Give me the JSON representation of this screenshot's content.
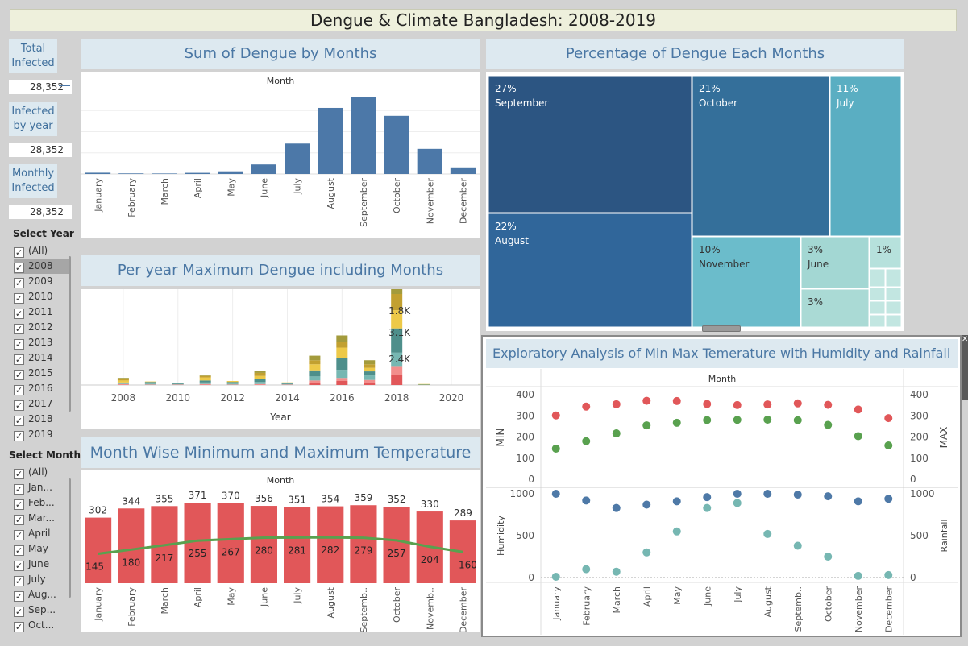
{
  "title": "Dengue & Climate Bangladesh: 2008-2019",
  "kpis": {
    "total_label": "Total Infected",
    "total_value": "28,352",
    "year_label": "Infected by year",
    "year_value": "28,352",
    "monthly_label": "Monthly Infected",
    "monthly_value": "28,352"
  },
  "year_filter": {
    "title": "Select Year",
    "items": [
      "(All)",
      "2008",
      "2009",
      "2010",
      "2011",
      "2012",
      "2013",
      "2014",
      "2015",
      "2016",
      "2017",
      "2018",
      "2019"
    ],
    "selected": "2008"
  },
  "month_filter": {
    "title": "Select Months",
    "items": [
      "(All)",
      "Jan...",
      "Feb...",
      "Mar...",
      "April",
      "May",
      "June",
      "July",
      "Aug...",
      "Sep...",
      "Oct..."
    ]
  },
  "months": [
    "January",
    "February",
    "March",
    "April",
    "May",
    "June",
    "July",
    "August",
    "September",
    "October",
    "November",
    "December"
  ],
  "colors": {
    "bar_blue": "#4c78a8",
    "temp_red": "#e15759",
    "temp_green": "#59a14f",
    "hum_blue": "#4e79a7",
    "rain_teal": "#76b7b2",
    "title_blue": "#4a77a4",
    "panel_header": "#dde9f0"
  },
  "chart_data": [
    {
      "type": "bar",
      "title": "Sum of Dengue by Months",
      "header": "Month",
      "categories": [
        "January",
        "February",
        "March",
        "April",
        "May",
        "June",
        "July",
        "August",
        "September",
        "October",
        "November",
        "December"
      ],
      "values": [
        96,
        44,
        38,
        86,
        201,
        719,
        2300,
        5000,
        5800,
        4400,
        1900,
        500
      ]
    },
    {
      "type": "treemap",
      "title": "Percentage of Dengue Each Months",
      "cells": [
        {
          "pct": "27%",
          "label": "September",
          "color": "#2c5582"
        },
        {
          "pct": "21%",
          "label": "October",
          "color": "#346f9a"
        },
        {
          "pct": "11%",
          "label": "July",
          "color": "#5aaec2"
        },
        {
          "pct": "22%",
          "label": "August",
          "color": "#30669a"
        },
        {
          "pct": "10%",
          "label": "November",
          "color": "#6bbccb"
        },
        {
          "pct": "3%",
          "label": "June",
          "color": "#a3d7d3"
        },
        {
          "pct": "1%",
          "label": "",
          "color": "#b6e1dc"
        },
        {
          "pct": "3%",
          "label": "",
          "color": "#aadad5"
        }
      ]
    },
    {
      "type": "bar",
      "stacked": true,
      "title": "Per year Maximum Dengue including Months",
      "xlabel": "Year",
      "x_ticks": [
        "2008",
        "2010",
        "2012",
        "2014",
        "2016",
        "2018",
        "2020"
      ],
      "xlim": [
        2007,
        2020.5
      ],
      "series_colors": [
        "#e15759",
        "#f28e8c",
        "#76b7b2",
        "#4e8f8b",
        "#edc948",
        "#c2a030",
        "#a39b3c"
      ],
      "data_labels": [
        "1.8K",
        "3.1K",
        "2.4K"
      ],
      "stacks": [
        {
          "year": 2008,
          "values": [
            0,
            100,
            150,
            0,
            200,
            150,
            100
          ]
        },
        {
          "year": 2009,
          "values": [
            0,
            50,
            100,
            150,
            50,
            0,
            0
          ]
        },
        {
          "year": 2010,
          "values": [
            0,
            50,
            60,
            80,
            50,
            0,
            0
          ]
        },
        {
          "year": 2011,
          "values": [
            0,
            100,
            150,
            200,
            300,
            150,
            50
          ]
        },
        {
          "year": 2012,
          "values": [
            0,
            50,
            100,
            150,
            100,
            0,
            0
          ]
        },
        {
          "year": 2013,
          "values": [
            0,
            100,
            200,
            300,
            300,
            300,
            200
          ]
        },
        {
          "year": 2014,
          "values": [
            0,
            50,
            60,
            100,
            50,
            0,
            0
          ]
        },
        {
          "year": 2015,
          "values": [
            200,
            250,
            400,
            600,
            600,
            400,
            450
          ]
        },
        {
          "year": 2016,
          "values": [
            400,
            300,
            800,
            1200,
            1000,
            600,
            600
          ]
        },
        {
          "year": 2017,
          "values": [
            200,
            300,
            450,
            400,
            350,
            350,
            400
          ]
        },
        {
          "year": 2018,
          "values": [
            1000,
            800,
            1400,
            2400,
            1800,
            1600,
            1000
          ]
        },
        {
          "year": 2019,
          "values": [
            0,
            0,
            0,
            50,
            50,
            0,
            0
          ]
        }
      ]
    },
    {
      "type": "bar",
      "title": "Month Wise Minimum and Maximum Temperature",
      "header": "Month",
      "categories": [
        "January",
        "February",
        "March",
        "April",
        "May",
        "June",
        "July",
        "August",
        "Septemb..",
        "October",
        "Novemb..",
        "December"
      ],
      "series": [
        {
          "name": "MAX",
          "values": [
            302,
            344,
            355,
            371,
            370,
            356,
            351,
            354,
            359,
            352,
            330,
            289
          ]
        },
        {
          "name": "MIN",
          "values": [
            145,
            180,
            217,
            255,
            267,
            280,
            281,
            282,
            279,
            257,
            204,
            160
          ]
        }
      ]
    },
    {
      "type": "scatter",
      "title": "Exploratory Analysis of Min Max Temerature with Humidity and Rainfall",
      "header": "Month",
      "categories": [
        "January",
        "February",
        "March",
        "April",
        "May",
        "June",
        "July",
        "August",
        "Septemb..",
        "October",
        "November",
        "December"
      ],
      "top": {
        "ylabel_left": "MIN",
        "ylabel_right": "MAX",
        "ylim": [
          0,
          400
        ],
        "ticks": [
          "400",
          "300",
          "200",
          "100",
          "0"
        ],
        "series": [
          {
            "name": "MAX",
            "values": [
              302,
              344,
              355,
              371,
              370,
              356,
              351,
              354,
              359,
              352,
              330,
              289
            ]
          },
          {
            "name": "MIN",
            "values": [
              145,
              180,
              217,
              255,
              267,
              280,
              281,
              282,
              279,
              257,
              204,
              160
            ]
          }
        ]
      },
      "bottom": {
        "ylabel_left": "Humidity",
        "ylabel_right": "Rainfall",
        "ylim": [
          0,
          1000
        ],
        "ticks": [
          "1000",
          "500",
          "0"
        ],
        "series": [
          {
            "name": "Humidity",
            "values": [
              1000,
              920,
              830,
              870,
              910,
              960,
              1000,
              1000,
              990,
              970,
              910,
              940
            ]
          },
          {
            "name": "Rainfall",
            "values": [
              10,
              100,
              70,
              300,
              550,
              830,
              890,
              520,
              380,
              250,
              20,
              30
            ]
          }
        ]
      }
    }
  ]
}
